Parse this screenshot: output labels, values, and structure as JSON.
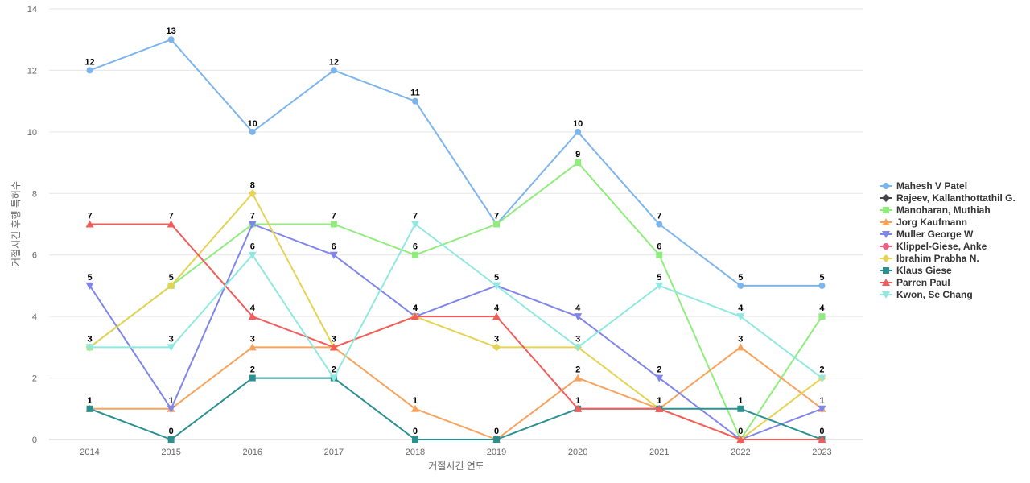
{
  "chart_data": {
    "type": "line",
    "title": "",
    "xlabel": "거절시킨 연도",
    "ylabel": "거절시킨 후행 특허수",
    "x": [
      "2014",
      "2015",
      "2016",
      "2017",
      "2018",
      "2019",
      "2020",
      "2021",
      "2022",
      "2023"
    ],
    "ylim": [
      0,
      14
    ],
    "yticks": [
      0,
      2,
      4,
      6,
      8,
      10,
      12,
      14
    ],
    "grid": true,
    "legend_position": "right",
    "series": [
      {
        "name": "Mahesh V Patel",
        "color": "#7cb5ec",
        "marker": "circle",
        "values": [
          12,
          13,
          10,
          12,
          11,
          7,
          10,
          7,
          5,
          5
        ]
      },
      {
        "name": "Rajeev, Kallanthottathil G.",
        "color": "#434348",
        "marker": "diamond",
        "values": [
          null,
          null,
          null,
          null,
          null,
          null,
          null,
          null,
          null,
          null
        ]
      },
      {
        "name": "Manoharan, Muthiah",
        "color": "#90ed7d",
        "marker": "square",
        "values": [
          3,
          5,
          7,
          7,
          6,
          7,
          9,
          6,
          0,
          4
        ]
      },
      {
        "name": "Jorg Kaufmann",
        "color": "#f7a35c",
        "marker": "triangle",
        "values": [
          1,
          1,
          3,
          3,
          1,
          0,
          2,
          1,
          3,
          1
        ]
      },
      {
        "name": "Muller George W",
        "color": "#8085e9",
        "marker": "triangle-down",
        "values": [
          5,
          1,
          7,
          6,
          4,
          5,
          4,
          2,
          0,
          1
        ]
      },
      {
        "name": "Klippel-Giese, Anke",
        "color": "#f15c80",
        "marker": "circle",
        "values": [
          null,
          null,
          null,
          null,
          null,
          null,
          null,
          null,
          null,
          null
        ]
      },
      {
        "name": "Ibrahim Prabha N.",
        "color": "#e4d354",
        "marker": "diamond",
        "values": [
          3,
          5,
          8,
          3,
          4,
          3,
          3,
          1,
          0,
          2
        ]
      },
      {
        "name": "Klaus Giese",
        "color": "#2b908f",
        "marker": "square",
        "values": [
          1,
          0,
          2,
          2,
          0,
          0,
          1,
          1,
          1,
          0
        ]
      },
      {
        "name": "Parren Paul",
        "color": "#f45b5b",
        "marker": "triangle",
        "values": [
          7,
          7,
          4,
          3,
          4,
          4,
          1,
          1,
          0,
          0
        ]
      },
      {
        "name": "Kwon, Se Chang",
        "color": "#91e8e1",
        "marker": "triangle-down",
        "values": [
          3,
          3,
          6,
          2,
          7,
          5,
          3,
          5,
          4,
          2
        ]
      }
    ],
    "data_labels": [
      [
        12,
        13,
        10,
        12,
        11,
        7,
        10,
        7,
        5,
        5
      ],
      [
        3,
        5,
        8,
        7,
        7,
        7,
        9,
        6,
        3,
        4
      ],
      [
        7,
        7,
        7,
        6,
        6,
        5,
        4,
        5,
        4,
        2
      ],
      [
        5,
        3,
        6,
        3,
        4,
        4,
        3,
        2,
        1,
        1
      ],
      [
        1,
        1,
        4,
        3,
        4,
        3,
        2,
        1,
        0,
        0
      ],
      [
        3,
        0,
        3,
        2,
        1,
        0,
        1,
        1,
        null,
        null
      ],
      [
        1,
        null,
        2,
        null,
        0,
        null,
        null,
        null,
        null,
        null
      ]
    ]
  }
}
